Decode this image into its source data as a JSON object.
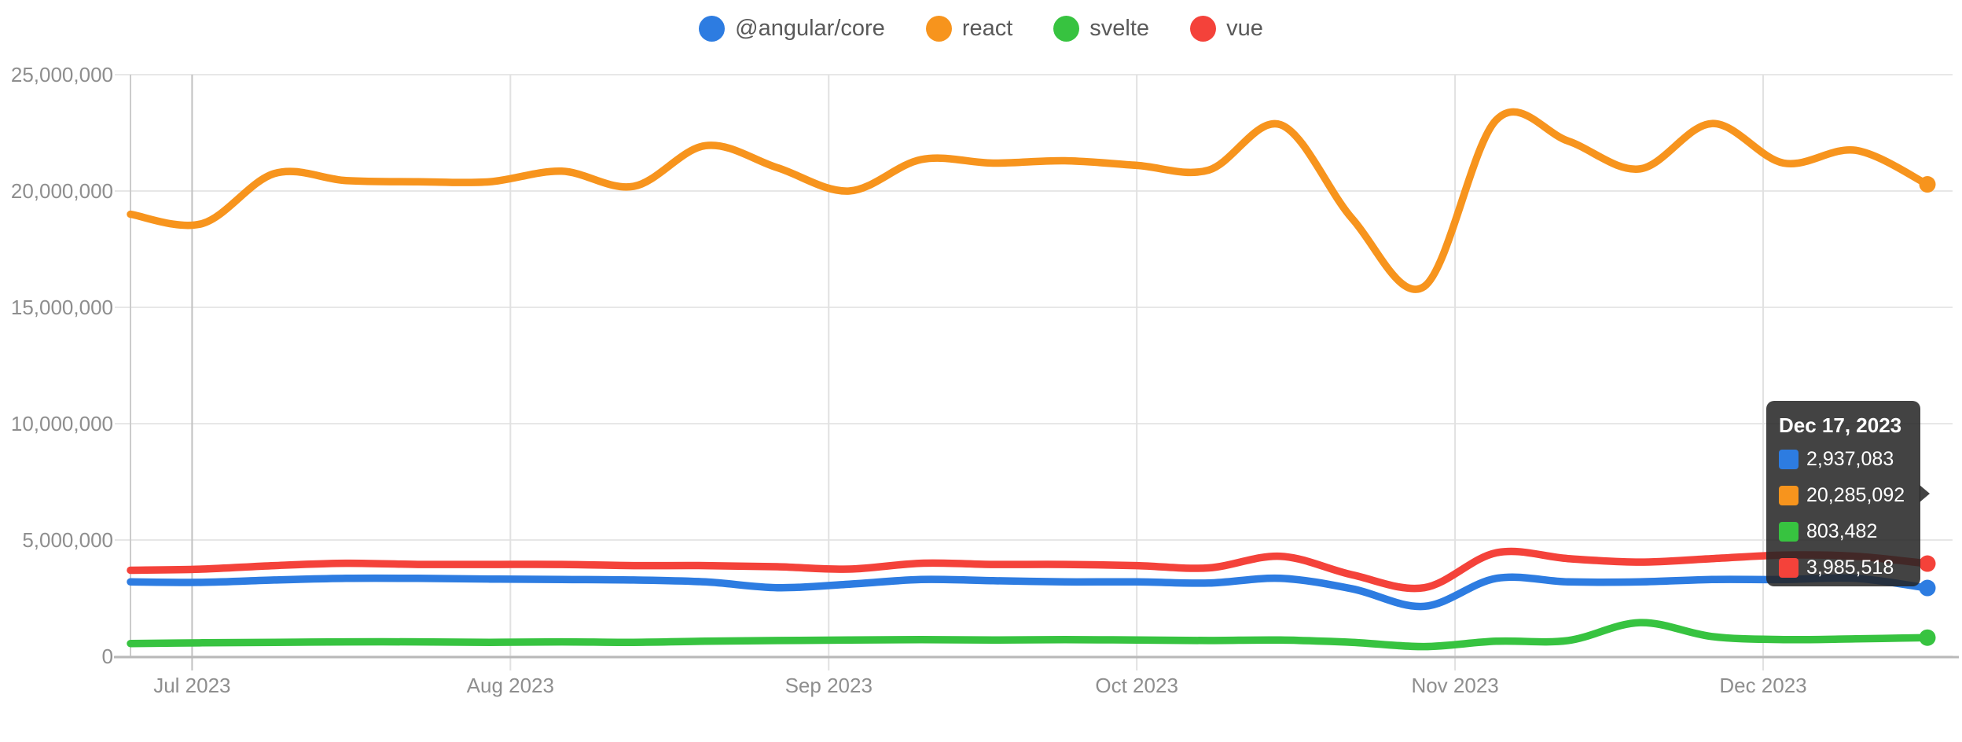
{
  "page": {
    "background": "#ffffff"
  },
  "tooltip": {
    "title": "Dec 17, 2023",
    "rows": [
      {
        "label": "@angular/core",
        "value": "2,937,083"
      },
      {
        "label": "react",
        "value": "20,285,092"
      },
      {
        "label": "svelte",
        "value": "803,482"
      },
      {
        "label": "vue",
        "value": "3,985,518"
      }
    ]
  },
  "chart_data": {
    "type": "line",
    "title": "",
    "xlabel": "",
    "ylabel": "",
    "grid": true,
    "legend_position": "top",
    "x": [
      "2023-06-25",
      "2023-07-02",
      "2023-07-09",
      "2023-07-16",
      "2023-07-23",
      "2023-07-30",
      "2023-08-06",
      "2023-08-13",
      "2023-08-20",
      "2023-08-27",
      "2023-09-03",
      "2023-09-10",
      "2023-09-17",
      "2023-09-24",
      "2023-10-01",
      "2023-10-08",
      "2023-10-15",
      "2023-10-22",
      "2023-10-29",
      "2023-11-05",
      "2023-11-12",
      "2023-11-19",
      "2023-11-26",
      "2023-12-03",
      "2023-12-10",
      "2023-12-17"
    ],
    "series": [
      {
        "name": "@angular/core",
        "color": "#2d7ce1",
        "values": [
          3200000,
          3180000,
          3280000,
          3350000,
          3350000,
          3320000,
          3300000,
          3280000,
          3200000,
          2950000,
          3100000,
          3300000,
          3250000,
          3200000,
          3200000,
          3150000,
          3350000,
          2900000,
          2150000,
          3350000,
          3200000,
          3200000,
          3300000,
          3300000,
          3350000,
          2937083
        ]
      },
      {
        "name": "react",
        "color": "#f7941d",
        "values": [
          19000000,
          18600000,
          20750000,
          20450000,
          20400000,
          20400000,
          20850000,
          20200000,
          21950000,
          21000000,
          20000000,
          21350000,
          21200000,
          21300000,
          21100000,
          20900000,
          22850000,
          18800000,
          15900000,
          23050000,
          22150000,
          20950000,
          22900000,
          21200000,
          21750000,
          20285092
        ]
      },
      {
        "name": "svelte",
        "color": "#37c340",
        "values": [
          550000,
          580000,
          600000,
          620000,
          620000,
          600000,
          620000,
          600000,
          650000,
          680000,
          700000,
          720000,
          700000,
          720000,
          700000,
          680000,
          700000,
          600000,
          420000,
          650000,
          680000,
          1450000,
          850000,
          720000,
          750000,
          803482
        ]
      },
      {
        "name": "vue",
        "color": "#f4423a",
        "values": [
          3700000,
          3750000,
          3900000,
          4000000,
          3950000,
          3950000,
          3950000,
          3900000,
          3900000,
          3850000,
          3750000,
          4000000,
          3950000,
          3950000,
          3900000,
          3800000,
          4300000,
          3500000,
          2950000,
          4450000,
          4200000,
          4050000,
          4200000,
          4350000,
          4300000,
          3985518
        ]
      }
    ],
    "y_axis": {
      "max": 25000000,
      "ticks": [
        {
          "label": "0",
          "value": 0
        },
        {
          "label": "5,000,000",
          "value": 5000000
        },
        {
          "label": "10,000,000",
          "value": 10000000
        },
        {
          "label": "15,000,000",
          "value": 15000000
        },
        {
          "label": "20,000,000",
          "value": 20000000
        },
        {
          "label": "25,000,000",
          "value": 25000000
        }
      ]
    },
    "x_axis": {
      "total_days": 175,
      "ticks": [
        {
          "label": "Jul 2023",
          "day": 6
        },
        {
          "label": "Aug 2023",
          "day": 37
        },
        {
          "label": "Sep 2023",
          "day": 68
        },
        {
          "label": "Oct 2023",
          "day": 98
        },
        {
          "label": "Nov 2023",
          "day": 129
        },
        {
          "label": "Dec 2023",
          "day": 159
        }
      ]
    },
    "hover_point": {
      "date": "Dec 17, 2023",
      "values": {
        "@angular/core": 2937083,
        "react": 20285092,
        "svelte": 803482,
        "vue": 3985518
      }
    }
  }
}
